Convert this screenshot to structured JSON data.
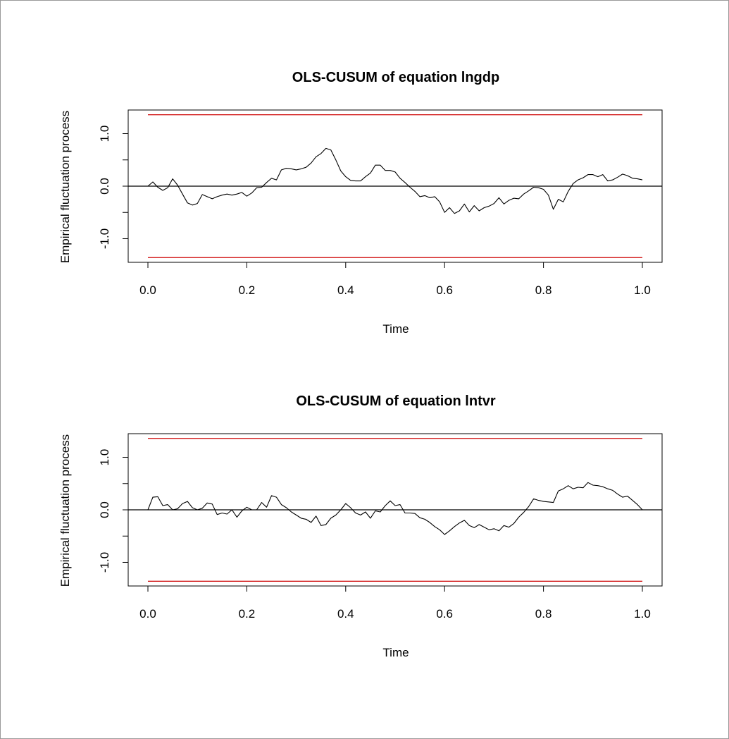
{
  "colors": {
    "boundary": "#d42020",
    "process": "#000000",
    "zero_line": "#000000",
    "frame": "#000000"
  },
  "chart_data": [
    {
      "type": "line",
      "title": "OLS-CUSUM of equation lngdp",
      "xlabel": "Time",
      "ylabel": "Empirical fluctuation process",
      "xlim": [
        0.0,
        1.0
      ],
      "ylim": [
        -1.45,
        1.45
      ],
      "x_ticks": [
        "0.0",
        "0.2",
        "0.4",
        "0.6",
        "0.8",
        "1.0"
      ],
      "y_ticks": [
        "-1.0",
        "0.0",
        "1.0"
      ],
      "y_minor_ticks": [
        -0.5,
        0.5
      ],
      "boundaries": [
        1.36,
        -1.36
      ],
      "zero_line": 0,
      "grid": false,
      "legend": "none",
      "series": [
        {
          "x": [
            0.0,
            0.01,
            0.02,
            0.03,
            0.04,
            0.05,
            0.06,
            0.07,
            0.08,
            0.09,
            0.1,
            0.11,
            0.12,
            0.13,
            0.14,
            0.15,
            0.16,
            0.17,
            0.18,
            0.19,
            0.2,
            0.21,
            0.22,
            0.23,
            0.24,
            0.25,
            0.26,
            0.27,
            0.28,
            0.29,
            0.3,
            0.31,
            0.32,
            0.33,
            0.34,
            0.35,
            0.36,
            0.37,
            0.38,
            0.39,
            0.4,
            0.41,
            0.42,
            0.43,
            0.44,
            0.45,
            0.46,
            0.47,
            0.48,
            0.49,
            0.5,
            0.51,
            0.52,
            0.53,
            0.54,
            0.55,
            0.56,
            0.57,
            0.58,
            0.59,
            0.6,
            0.61,
            0.62,
            0.63,
            0.64,
            0.65,
            0.66,
            0.67,
            0.68,
            0.69,
            0.7,
            0.71,
            0.72,
            0.73,
            0.74,
            0.75,
            0.76,
            0.77,
            0.78,
            0.79,
            0.8,
            0.81,
            0.82,
            0.83,
            0.84,
            0.85,
            0.86,
            0.87,
            0.88,
            0.89,
            0.9,
            0.91,
            0.92,
            0.93,
            0.94,
            0.95,
            0.96,
            0.97,
            0.98,
            0.99,
            1.0
          ],
          "values": [
            0.0,
            0.08,
            -0.02,
            -0.08,
            -0.03,
            0.14,
            0.02,
            -0.15,
            -0.32,
            -0.36,
            -0.33,
            -0.16,
            -0.2,
            -0.24,
            -0.2,
            -0.17,
            -0.15,
            -0.17,
            -0.15,
            -0.12,
            -0.19,
            -0.13,
            -0.03,
            -0.02,
            0.07,
            0.15,
            0.12,
            0.31,
            0.34,
            0.33,
            0.31,
            0.33,
            0.36,
            0.44,
            0.56,
            0.62,
            0.72,
            0.69,
            0.5,
            0.29,
            0.18,
            0.11,
            0.1,
            0.1,
            0.18,
            0.25,
            0.4,
            0.4,
            0.3,
            0.3,
            0.27,
            0.15,
            0.07,
            -0.02,
            -0.1,
            -0.2,
            -0.18,
            -0.22,
            -0.2,
            -0.3,
            -0.5,
            -0.41,
            -0.52,
            -0.47,
            -0.34,
            -0.49,
            -0.37,
            -0.47,
            -0.41,
            -0.38,
            -0.33,
            -0.22,
            -0.34,
            -0.27,
            -0.23,
            -0.24,
            -0.15,
            -0.09,
            -0.02,
            -0.03,
            -0.06,
            -0.17,
            -0.44,
            -0.25,
            -0.3,
            -0.1,
            0.05,
            0.12,
            0.16,
            0.22,
            0.22,
            0.18,
            0.22,
            0.1,
            0.12,
            0.17,
            0.23,
            0.2,
            0.15,
            0.14,
            0.12
          ]
        }
      ]
    },
    {
      "type": "line",
      "title": "OLS-CUSUM of equation lntvr",
      "xlabel": "Time",
      "ylabel": "Empirical fluctuation process",
      "xlim": [
        0.0,
        1.0
      ],
      "ylim": [
        -1.45,
        1.45
      ],
      "x_ticks": [
        "0.0",
        "0.2",
        "0.4",
        "0.6",
        "0.8",
        "1.0"
      ],
      "y_ticks": [
        "-1.0",
        "0.0",
        "1.0"
      ],
      "y_minor_ticks": [
        -0.5,
        0.5
      ],
      "boundaries": [
        1.36,
        -1.36
      ],
      "zero_line": 0,
      "grid": false,
      "legend": "none",
      "series": [
        {
          "x": [
            0.0,
            0.01,
            0.02,
            0.03,
            0.04,
            0.05,
            0.06,
            0.07,
            0.08,
            0.09,
            0.1,
            0.11,
            0.12,
            0.13,
            0.14,
            0.15,
            0.16,
            0.17,
            0.18,
            0.19,
            0.2,
            0.21,
            0.22,
            0.23,
            0.24,
            0.25,
            0.26,
            0.27,
            0.28,
            0.29,
            0.3,
            0.31,
            0.32,
            0.33,
            0.34,
            0.35,
            0.36,
            0.37,
            0.38,
            0.39,
            0.4,
            0.41,
            0.42,
            0.43,
            0.44,
            0.45,
            0.46,
            0.47,
            0.48,
            0.49,
            0.5,
            0.51,
            0.52,
            0.53,
            0.54,
            0.55,
            0.56,
            0.57,
            0.58,
            0.59,
            0.6,
            0.61,
            0.62,
            0.63,
            0.64,
            0.65,
            0.66,
            0.67,
            0.68,
            0.69,
            0.7,
            0.71,
            0.72,
            0.73,
            0.74,
            0.75,
            0.76,
            0.77,
            0.78,
            0.79,
            0.8,
            0.81,
            0.82,
            0.83,
            0.84,
            0.85,
            0.86,
            0.87,
            0.88,
            0.89,
            0.9,
            0.91,
            0.92,
            0.93,
            0.94,
            0.95,
            0.96,
            0.97,
            0.98,
            0.99,
            1.0
          ],
          "values": [
            0.0,
            0.24,
            0.25,
            0.08,
            0.1,
            0.0,
            0.02,
            0.12,
            0.16,
            0.04,
            0.0,
            0.03,
            0.13,
            0.11,
            -0.09,
            -0.06,
            -0.08,
            0.0,
            -0.14,
            -0.02,
            0.05,
            0.0,
            0.0,
            0.14,
            0.05,
            0.27,
            0.24,
            0.1,
            0.04,
            -0.04,
            -0.1,
            -0.16,
            -0.18,
            -0.24,
            -0.12,
            -0.3,
            -0.28,
            -0.16,
            -0.1,
            0.0,
            0.12,
            0.04,
            -0.06,
            -0.1,
            -0.04,
            -0.16,
            -0.02,
            -0.04,
            0.08,
            0.17,
            0.08,
            0.1,
            -0.06,
            -0.06,
            -0.07,
            -0.15,
            -0.18,
            -0.24,
            -0.32,
            -0.38,
            -0.47,
            -0.4,
            -0.32,
            -0.25,
            -0.2,
            -0.3,
            -0.34,
            -0.28,
            -0.33,
            -0.38,
            -0.36,
            -0.4,
            -0.3,
            -0.33,
            -0.26,
            -0.14,
            -0.05,
            0.06,
            0.21,
            0.18,
            0.16,
            0.15,
            0.14,
            0.36,
            0.4,
            0.46,
            0.4,
            0.43,
            0.42,
            0.52,
            0.47,
            0.46,
            0.44,
            0.4,
            0.37,
            0.3,
            0.24,
            0.26,
            0.18,
            0.1,
            0.0
          ]
        }
      ]
    }
  ]
}
